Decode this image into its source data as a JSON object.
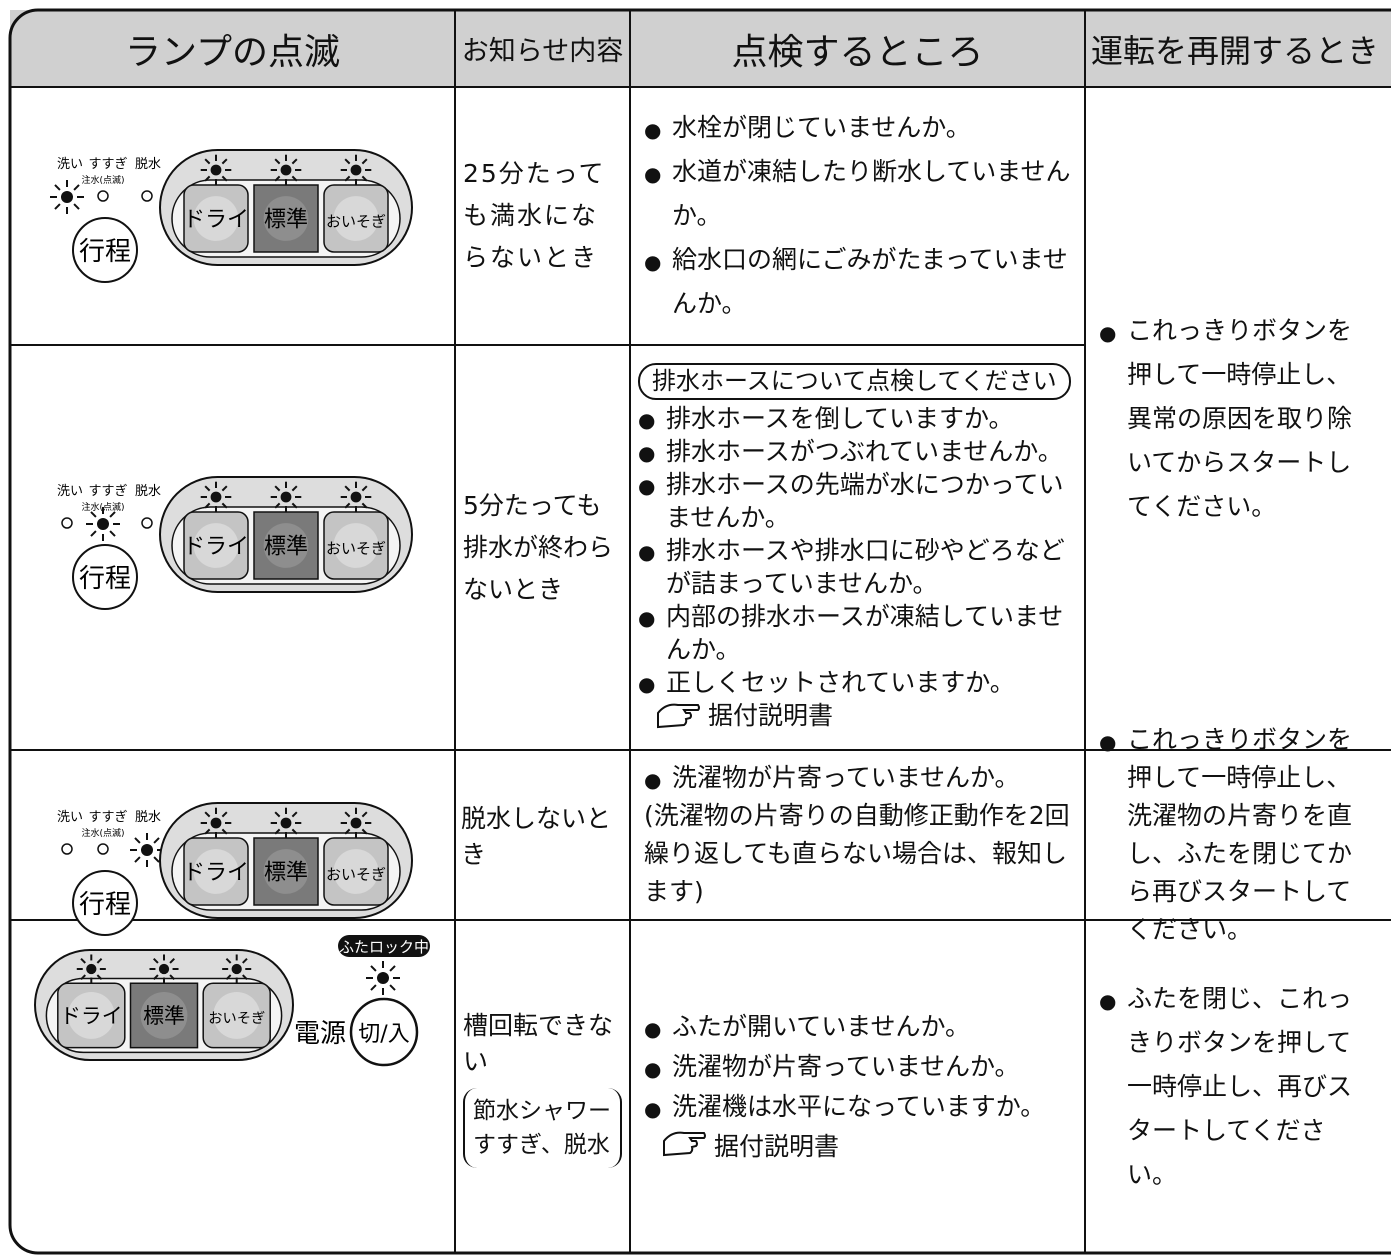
{
  "header": [
    "ランプの点滅",
    "お知らせ内容",
    "点検するところ",
    "運転を再開するとき"
  ],
  "panel": {
    "wash": "洗い",
    "rinse": "すすぎ",
    "spin": "脱水",
    "fill": "注水(点滅)",
    "course": "行程",
    "dry": "ドライ",
    "standard": "標準",
    "quick": "おいそぎ",
    "lid_lock": "ふたロック中",
    "power": "電源",
    "switch": "切/入"
  },
  "rows": [
    {
      "notice": "25分たっても満水にならないとき",
      "checks": [
        "水栓が閉じていませんか。",
        "水道が凍結したり断水していませんか。",
        "給水口の網にごみがたまっていませんか。"
      ],
      "resume": "これっきりボタンを押して一時停止し、異常の原因を取り除いてからスタートしてください。"
    },
    {
      "notice": "5分たっても排水が終わらないとき",
      "check_heading": "排水ホースについて点検してください",
      "checks": [
        "排水ホースを倒していますか。",
        "排水ホースがつぶれていませんか。",
        "排水ホースの先端が水につかっていませんか。",
        "排水ホースや排水口に砂やどろなどが詰まっていませんか。",
        "内部の排水ホースが凍結していませんか。",
        "正しくセットされていますか。"
      ],
      "reference": "据付説明書"
    },
    {
      "notice": "脱水しないとき",
      "checks": [
        "洗濯物が片寄っていませんか。"
      ],
      "note": "(洗濯物の片寄りの自動修正動作を2回繰り返しても直らない場合は、報知します)",
      "resume": "これっきりボタンを押して一時停止し、洗濯物の片寄りを直し、ふたを閉じてから再びスタートしてください。"
    },
    {
      "notice": "槽回転できない",
      "notice_note": [
        "節水シャワー",
        "すすぎ、脱水"
      ],
      "checks": [
        "ふたが開いていませんか。",
        "洗濯物が片寄っていませんか。",
        "洗濯機は水平になっていますか。"
      ],
      "reference": "据付説明書",
      "resume": "ふたを閉じ、これっきりボタンを押して一時停止し、再びスタートしてください。"
    }
  ]
}
